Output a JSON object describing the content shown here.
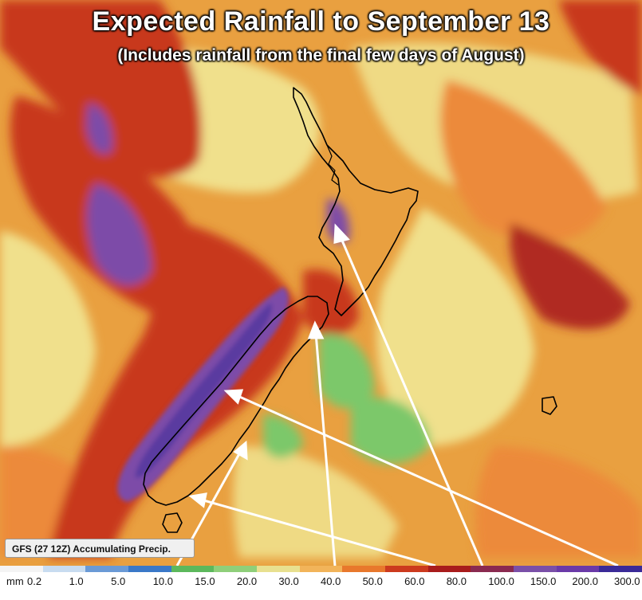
{
  "title": "Expected Rainfall to September 13",
  "subtitle": "(Includes rainfall from the final few days of August)",
  "model_label": "GFS (27 12Z) Accumulating Precip.",
  "legend": {
    "unit": "mm",
    "ticks": [
      "0.2",
      "1.0",
      "5.0",
      "10.0",
      "15.0",
      "20.0",
      "30.0",
      "40.0",
      "50.0",
      "60.0",
      "80.0",
      "100.0",
      "150.0",
      "200.0",
      "300.0"
    ],
    "colors": [
      "#f4f4f4",
      "#c8dcf0",
      "#6a9ad6",
      "#3a78c8",
      "#5cb85c",
      "#8fcf7a",
      "#e8e090",
      "#f2b45a",
      "#e8782c",
      "#cc3a1e",
      "#a81c1c",
      "#8a2a50",
      "#7a50a8",
      "#6a3aa8",
      "#3a2a98"
    ]
  },
  "map": {
    "region": "New Zealand",
    "colors": {
      "ocean_base": "#e9a040",
      "light_yellow": "#f0e08c",
      "orange": "#ec8a3a",
      "red": "#c8381e",
      "dark_red": "#a81c1c",
      "purple": "#7d4ca8",
      "dark_purple": "#5a3aa0",
      "green": "#7cc86a",
      "coastline": "#000000",
      "arrow": "#ffffff"
    }
  }
}
